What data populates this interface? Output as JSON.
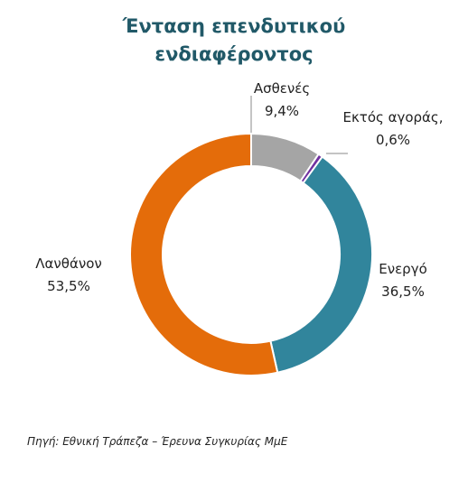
{
  "chart_data": {
    "type": "donut",
    "title": "Ένταση επενδυτικού ενδιαφέροντος",
    "categories": [
      "Ασθενές",
      "Εκτός αγοράς,",
      "Ενεργό",
      "Λανθάνον"
    ],
    "values": [
      9.4,
      0.6,
      36.5,
      53.5
    ],
    "value_labels": [
      "9,4%",
      "0,6%",
      "36,5%",
      "53,5%"
    ],
    "colors": [
      "#a5a5a5",
      "#7030a0",
      "#31859c",
      "#e46c0a"
    ],
    "source": "Πηγή: Εθνική Τράπεζα – Έρευνα Συγκυρίας ΜμΕ"
  }
}
